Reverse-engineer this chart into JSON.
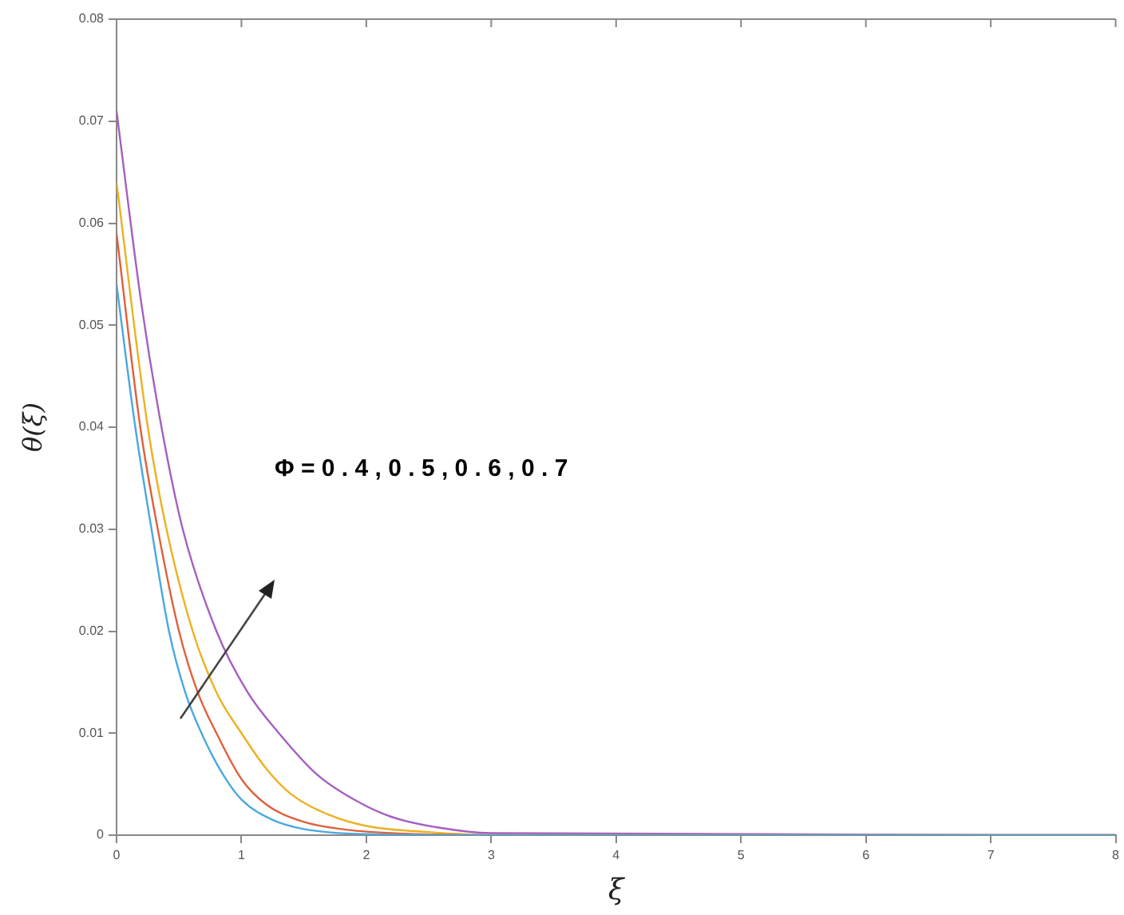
{
  "chart_data": {
    "type": "line",
    "xlabel": "ξ",
    "ylabel": "θ(ξ)",
    "xlim": [
      0,
      8
    ],
    "xticks": [
      0,
      1,
      2,
      3,
      4,
      5,
      6,
      7,
      8
    ],
    "ylim": [
      0,
      0.08
    ],
    "yticks": [
      0,
      0.01,
      0.02,
      0.03,
      0.04,
      0.05,
      0.06,
      0.07,
      0.08
    ],
    "grid": false,
    "legend": false,
    "marker": "none",
    "line_style": "solid",
    "annotations": [
      "Φ = 0 . 4 , 0 . 5 , 0 . 6 , 0 . 7"
    ],
    "series": [
      {
        "color": "#4aa8e0",
        "x": [
          0,
          0.15,
          0.28,
          0.42,
          0.55,
          0.68,
          0.85,
          1,
          1.25,
          1.5,
          2,
          3,
          8
        ],
        "values": [
          0.054,
          0.04,
          0.03,
          0.02,
          0.014,
          0.01,
          0.006,
          0.0035,
          0.0015,
          0.0006,
          0.0001,
          0,
          0
        ]
      },
      {
        "color": "#e0603a",
        "x": [
          0,
          0.19,
          0.33,
          0.5,
          0.65,
          0.8,
          1,
          1.2,
          1.5,
          1.8,
          2.2,
          3,
          8
        ],
        "values": [
          0.059,
          0.04,
          0.03,
          0.02,
          0.014,
          0.01,
          0.0055,
          0.003,
          0.0013,
          0.0006,
          0.0002,
          0,
          0
        ]
      },
      {
        "color": "#edb120",
        "x": [
          0,
          0.25,
          0.4,
          0.61,
          0.8,
          1,
          1.2,
          1.4,
          1.7,
          2,
          2.5,
          3,
          8
        ],
        "values": [
          0.064,
          0.04,
          0.03,
          0.02,
          0.014,
          0.01,
          0.0065,
          0.004,
          0.002,
          0.0009,
          0.0003,
          0,
          0
        ]
      },
      {
        "color": "#a55fc0",
        "x": [
          0,
          0.2,
          0.36,
          0.53,
          0.8,
          1.05,
          1.3,
          1.6,
          1.9,
          2.2,
          2.6,
          3,
          8
        ],
        "values": [
          0.071,
          0.052,
          0.04,
          0.03,
          0.02,
          0.014,
          0.01,
          0.006,
          0.0035,
          0.0018,
          0.0007,
          0.0002,
          0
        ]
      }
    ]
  }
}
